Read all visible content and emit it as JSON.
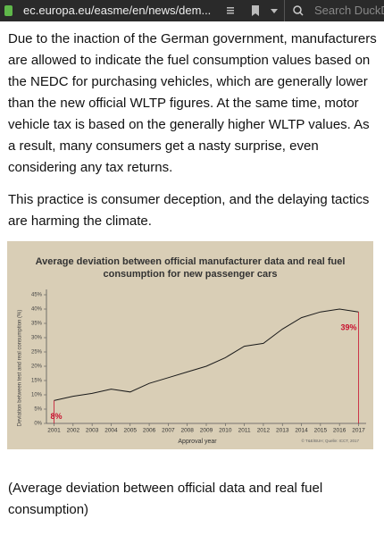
{
  "browser": {
    "url": "ec.europa.eu/easme/en/news/dem...",
    "search_placeholder": "Search DuckD"
  },
  "paragraphs": [
    "Due to the inaction of the German government, manufacturers are allowed to indicate the fuel consumption values based on the NEDC for purchasing vehicles, which are generally lower than the new official WLTP figures. At the same time, motor vehicle tax is based on the generally higher WLTP values. As a result, many consumers get a nasty surprise, even considering any tax returns.",
    "This practice is consumer deception, and the delaying tactics are harming the climate."
  ],
  "chart_data": {
    "type": "line",
    "title": "Average deviation between official manufacturer data and real fuel consumption for new passenger cars",
    "x_label": "Approval year",
    "y_label": "Deviation between test and real consumption (%)",
    "source": "© T&E/BUH; Quelle: ICCT, 2017",
    "x": [
      2001,
      2002,
      2003,
      2004,
      2005,
      2006,
      2007,
      2008,
      2009,
      2010,
      2011,
      2012,
      2013,
      2014,
      2015,
      2016,
      2017
    ],
    "values": [
      8,
      9.5,
      10.5,
      12,
      11,
      14,
      16,
      18,
      20,
      23,
      27,
      28,
      33,
      37,
      39,
      40,
      39
    ],
    "value_labels": [
      "8%",
      null,
      null,
      null,
      null,
      null,
      null,
      null,
      null,
      null,
      null,
      null,
      null,
      null,
      null,
      null,
      "39%"
    ],
    "color": "#1a1a1a",
    "label_color": "#c8102e",
    "xlim": [
      2000.6,
      2017.4
    ],
    "xticks": [
      2001,
      2002,
      2003,
      2004,
      2005,
      2006,
      2007,
      2008,
      2009,
      2010,
      2011,
      2012,
      2013,
      2014,
      2015,
      2016,
      2017
    ],
    "ylim": [
      0,
      45
    ],
    "yticks": [
      {
        "value": 0,
        "label": "0%"
      },
      {
        "value": 5,
        "label": "5%"
      },
      {
        "value": 10,
        "label": "10%"
      },
      {
        "value": 15,
        "label": "15%"
      },
      {
        "value": 20,
        "label": "20%"
      },
      {
        "value": 25,
        "label": "25%"
      },
      {
        "value": 30,
        "label": "30%"
      },
      {
        "value": 35,
        "label": "35%"
      },
      {
        "value": 40,
        "label": "40%"
      },
      {
        "value": 45,
        "label": "45%"
      }
    ],
    "grid": false
  },
  "caption": "(Average deviation between official data and real fuel consumption)"
}
